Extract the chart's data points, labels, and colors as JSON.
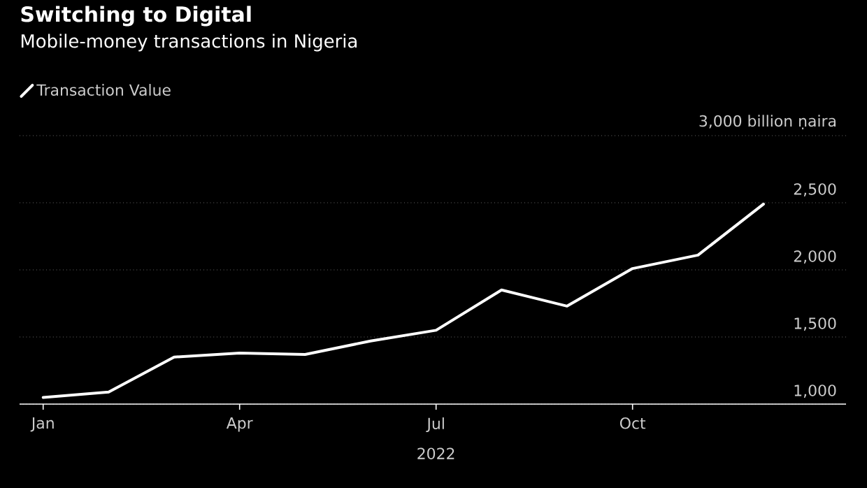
{
  "chart_data": {
    "type": "line",
    "title": "Switching to Digital",
    "subtitle": "Mobile-money transactions in Nigeria",
    "xlabel": "2022",
    "categories": [
      "Jan",
      null,
      null,
      "Apr",
      null,
      null,
      "Jul",
      null,
      null,
      "Oct",
      null,
      null
    ],
    "series": [
      {
        "name": "Transaction Value",
        "color": "#ffffff",
        "values": [
          1050,
          1090,
          1350,
          1380,
          1370,
          1470,
          1550,
          1850,
          1730,
          2010,
          2110,
          2490
        ]
      }
    ],
    "ylim": [
      1000,
      3000
    ],
    "yticks": [
      {
        "value": 1000,
        "label": "1,000"
      },
      {
        "value": 1500,
        "label": "1,500"
      },
      {
        "value": 2000,
        "label": "2,000"
      },
      {
        "value": 2500,
        "label": "2,500"
      },
      {
        "value": 3000,
        "label": "3,000 billion ṇaira"
      }
    ],
    "grid": "y",
    "legend": "top left",
    "marker": "none",
    "line_style": "solid"
  }
}
